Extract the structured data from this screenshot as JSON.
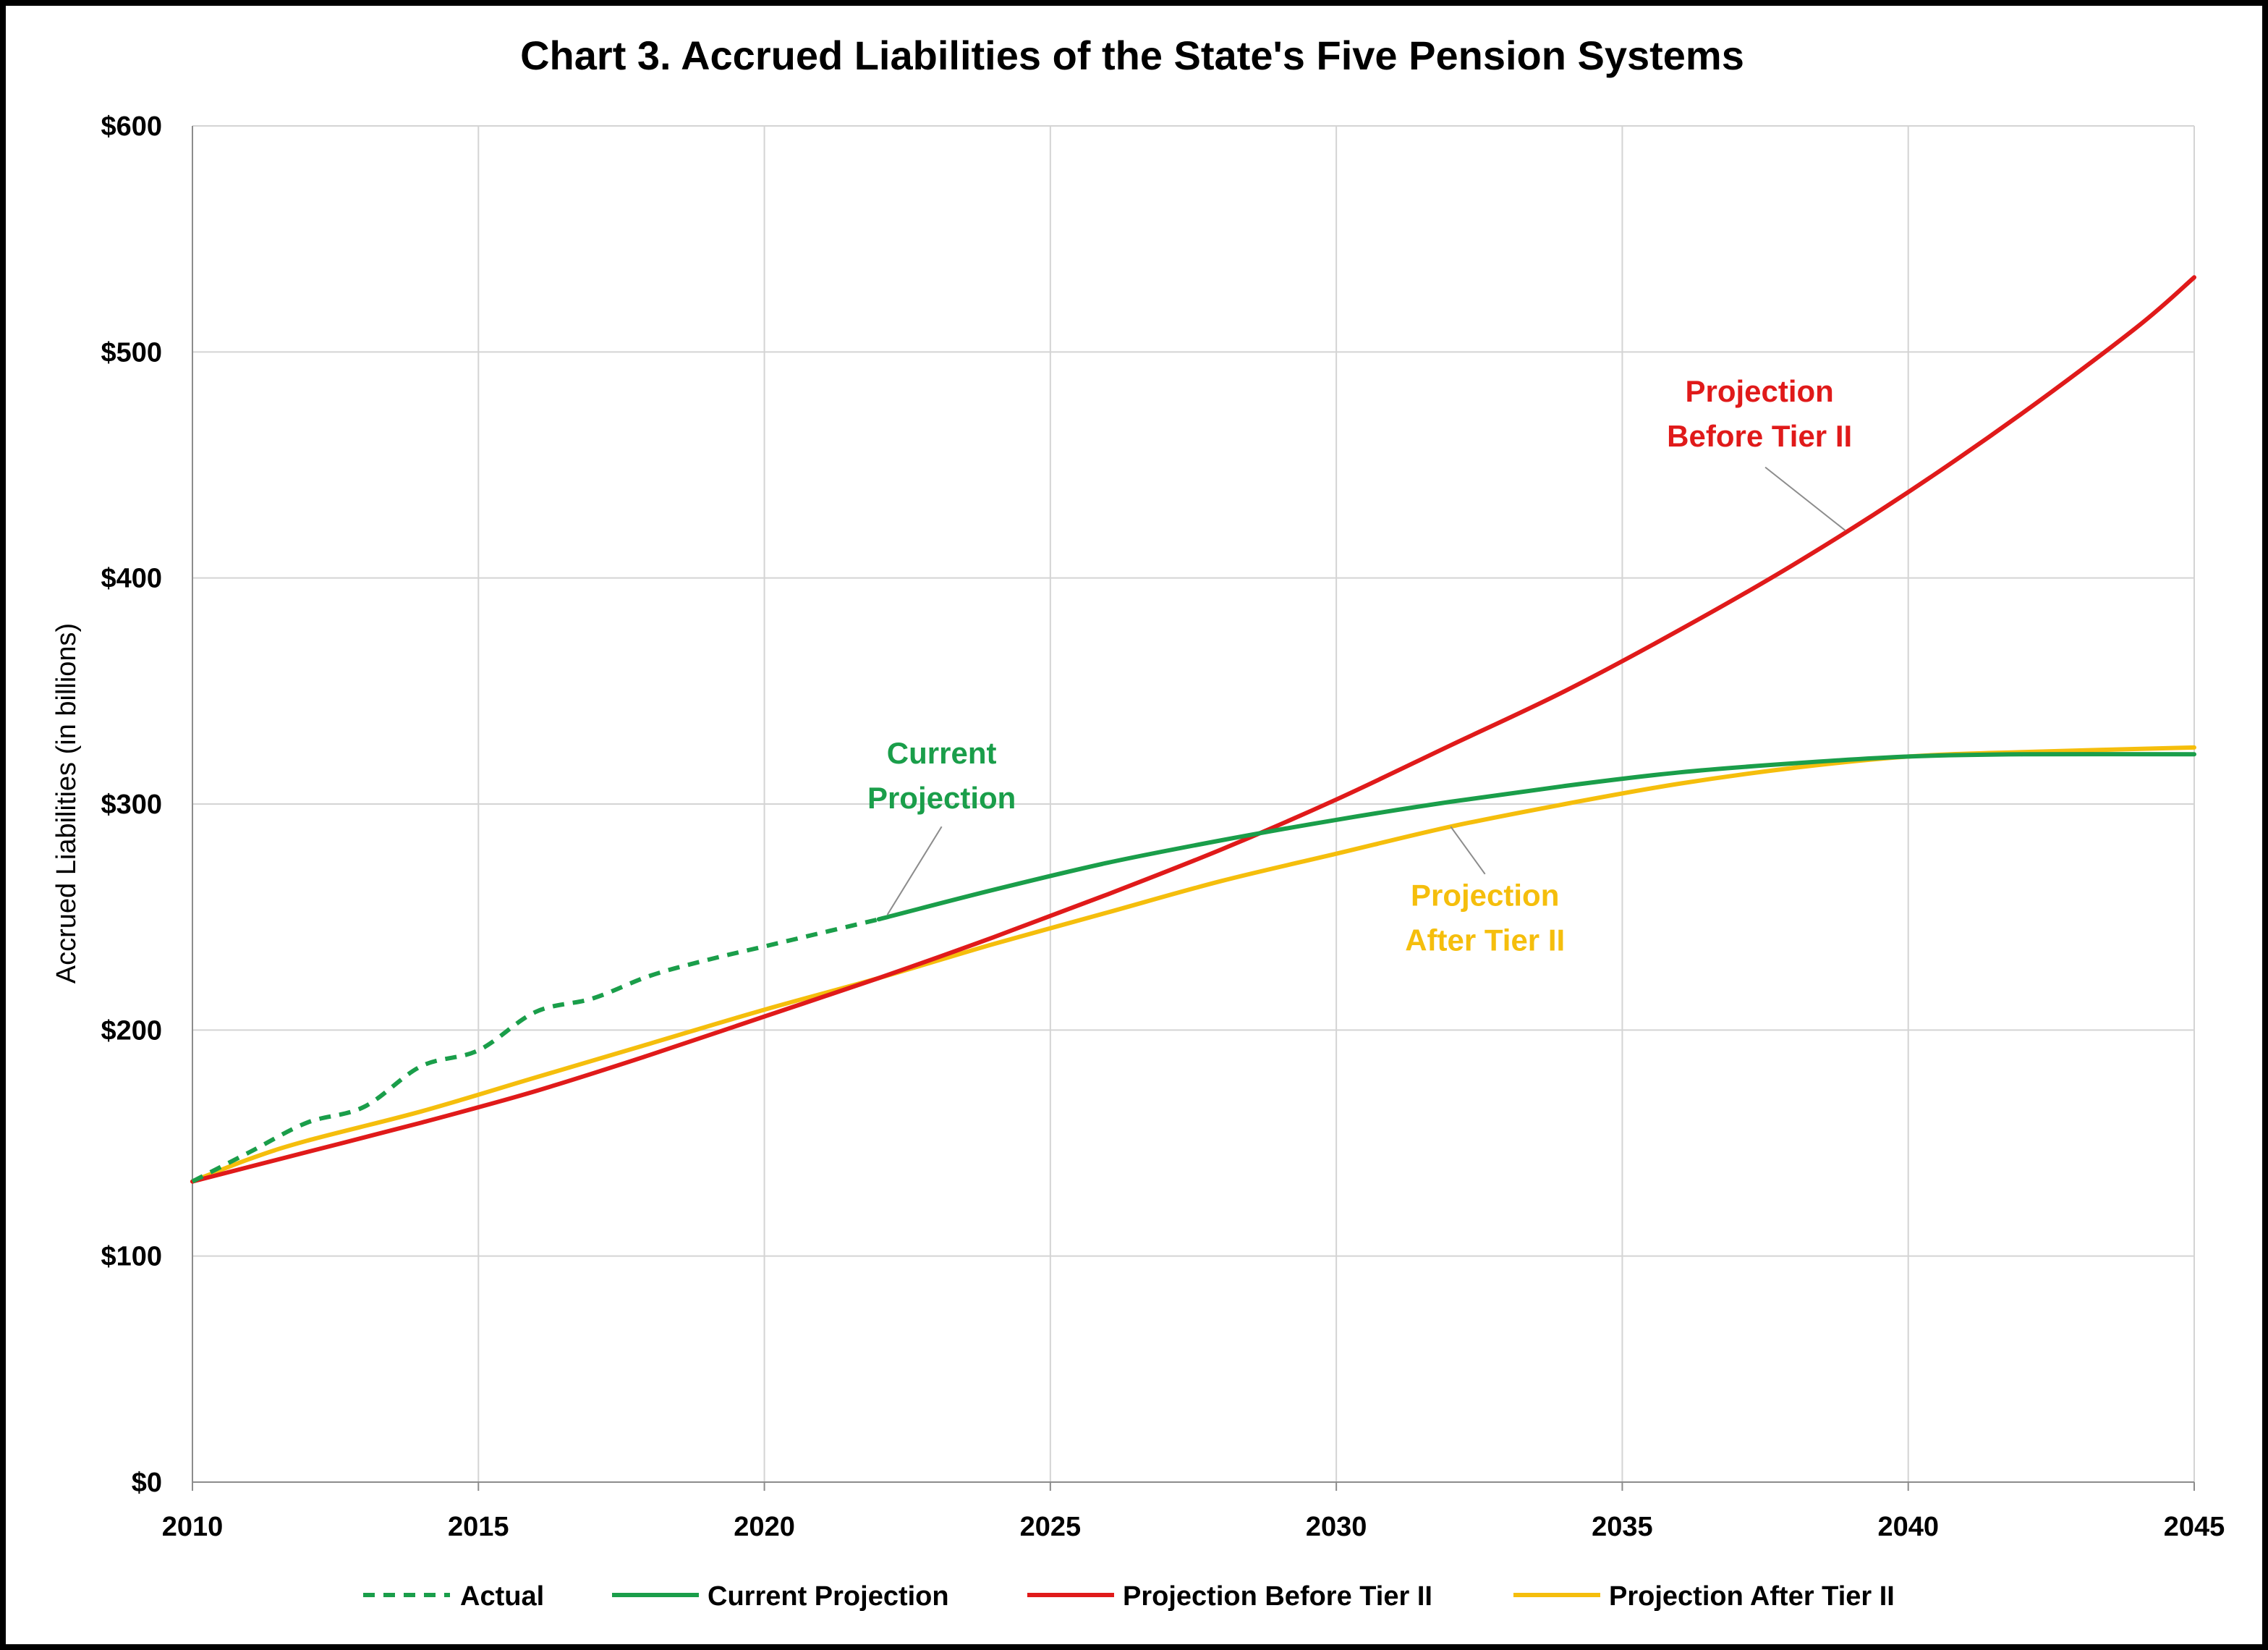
{
  "chart_data": {
    "type": "line",
    "title": "Chart 3. Accrued Liabilities of the State's Five Pension Systems",
    "xlabel": "",
    "ylabel": "Accrued Liabilities  (in billions)",
    "xlim": [
      2010,
      2045
    ],
    "ylim": [
      0,
      600
    ],
    "x_ticks": [
      "2010",
      "2015",
      "2020",
      "2025",
      "2030",
      "2035",
      "2040",
      "2045"
    ],
    "y_ticks": [
      "$0",
      "$100",
      "$200",
      "$300",
      "$400",
      "$500",
      "$600"
    ],
    "grid": true,
    "legend_position": "bottom",
    "series": [
      {
        "name": "Actual",
        "color": "#1a9e4a",
        "dash": true,
        "points": [
          [
            2010,
            133
          ],
          [
            2011,
            146
          ],
          [
            2012,
            159
          ],
          [
            2013,
            166
          ],
          [
            2014,
            184
          ],
          [
            2015,
            191
          ],
          [
            2016,
            208
          ],
          [
            2017,
            214
          ],
          [
            2018,
            224
          ],
          [
            2019,
            231
          ],
          [
            2020,
            237
          ],
          [
            2021,
            243
          ],
          [
            2022,
            249
          ]
        ]
      },
      {
        "name": "Current Projection",
        "color": "#1a9e4a",
        "dash": false,
        "points": [
          [
            2022,
            249
          ],
          [
            2024,
            262
          ],
          [
            2026,
            274
          ],
          [
            2028,
            284
          ],
          [
            2030,
            293
          ],
          [
            2032,
            301
          ],
          [
            2034,
            308
          ],
          [
            2036,
            314
          ],
          [
            2038,
            318
          ],
          [
            2040,
            321
          ],
          [
            2042,
            322
          ],
          [
            2045,
            322
          ]
        ]
      },
      {
        "name": "Projection Before Tier II",
        "color": "#e01a1a",
        "dash": false,
        "points": [
          [
            2010,
            133
          ],
          [
            2012,
            146
          ],
          [
            2014,
            159
          ],
          [
            2016,
            173
          ],
          [
            2018,
            189
          ],
          [
            2020,
            206
          ],
          [
            2022,
            223
          ],
          [
            2024,
            241
          ],
          [
            2026,
            260
          ],
          [
            2028,
            280
          ],
          [
            2030,
            302
          ],
          [
            2032,
            326
          ],
          [
            2034,
            350
          ],
          [
            2036,
            377
          ],
          [
            2038,
            406
          ],
          [
            2040,
            438
          ],
          [
            2042,
            473
          ],
          [
            2044,
            511
          ],
          [
            2045,
            533
          ]
        ]
      },
      {
        "name": "Projection After Tier II",
        "color": "#f5be0c",
        "dash": false,
        "points": [
          [
            2010,
            133
          ],
          [
            2011,
            143
          ],
          [
            2012,
            151
          ],
          [
            2014,
            164
          ],
          [
            2016,
            179
          ],
          [
            2018,
            194
          ],
          [
            2020,
            209
          ],
          [
            2022,
            223
          ],
          [
            2024,
            238
          ],
          [
            2026,
            252
          ],
          [
            2028,
            266
          ],
          [
            2030,
            278
          ],
          [
            2032,
            290
          ],
          [
            2034,
            300
          ],
          [
            2036,
            309
          ],
          [
            2038,
            316
          ],
          [
            2040,
            321
          ],
          [
            2042,
            323
          ],
          [
            2045,
            325
          ]
        ]
      }
    ],
    "annotations": [
      {
        "lines": [
          "Current",
          "Projection"
        ],
        "color": "#1a9e4a",
        "text_at": [
          2023.1,
          318
        ],
        "leader_from": [
          2023.1,
          290
        ],
        "leader_to": [
          2022.15,
          251
        ]
      },
      {
        "lines": [
          "Projection",
          "Before Tier II"
        ],
        "color": "#e01a1a",
        "text_at": [
          2037.4,
          478
        ],
        "leader_from": [
          2037.5,
          449
        ],
        "leader_to": [
          2038.9,
          421
        ]
      },
      {
        "lines": [
          "Projection",
          "After Tier II"
        ],
        "color": "#f5be0c",
        "text_at": [
          2032.6,
          255
        ],
        "leader_from": [
          2032.6,
          269
        ],
        "leader_to": [
          2032.0,
          290
        ]
      }
    ]
  }
}
